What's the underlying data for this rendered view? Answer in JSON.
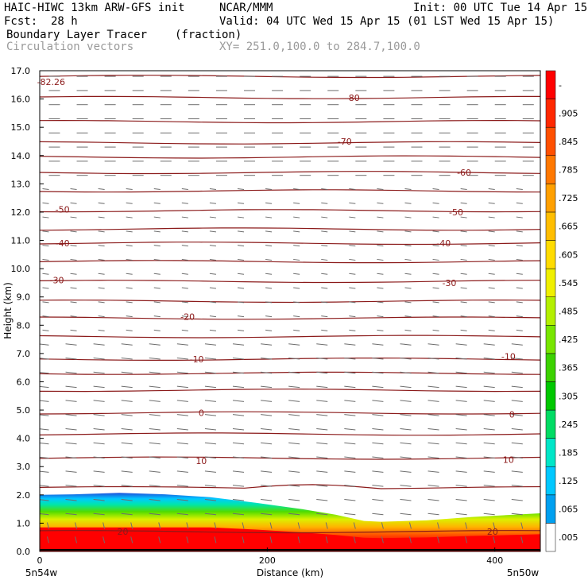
{
  "header": {
    "model": "HAIC-HIWC 13km ARW-GFS init",
    "org": "NCAR/MMM",
    "init": "Init: 00 UTC Tue 14 Apr 15",
    "fcst": "Fcst:  28 h",
    "valid": "Valid: 04 UTC Wed 15 Apr 15 (01 LST Wed 15 Apr 15)",
    "field": "Boundary Layer Tracer",
    "units": "(fraction)",
    "vectors": "Circulation vectors",
    "xy": "XY= 251.0,100.0 to 284.7,100.0"
  },
  "chart_data": {
    "type": "heatmap",
    "title": "Boundary Layer Tracer",
    "ylabel": "Height (km)",
    "xlabel": "Distance (km)",
    "x_end_labels": [
      "5n54w",
      "5n50w"
    ],
    "xlim": [
      0,
      440
    ],
    "ylim": [
      0,
      17
    ],
    "xticks": [
      0,
      200,
      400
    ],
    "xtick_labels": [
      "0",
      "200",
      "400"
    ],
    "yticks": [
      0,
      1,
      2,
      3,
      4,
      5,
      6,
      7,
      8,
      9,
      10,
      11,
      12,
      13,
      14,
      15,
      16,
      17
    ],
    "ytick_labels": [
      "0.0",
      "1.0",
      "2.0",
      "3.0",
      "4.0",
      "5.0",
      "6.0",
      "7.0",
      "8.0",
      "9.0",
      "10.0",
      "11.0",
      "12.0",
      "13.0",
      "14.0",
      "15.0",
      "16.0",
      "17.0"
    ],
    "colorbar": {
      "labels": [
        ".005",
        ".065",
        ".125",
        ".185",
        ".245",
        ".305",
        ".365",
        ".425",
        ".485",
        ".545",
        ".605",
        ".665",
        ".725",
        ".785",
        ".845",
        ".905",
        "-"
      ],
      "colors": [
        "#ffffff",
        "#00a0f0",
        "#00c8ff",
        "#00e6c8",
        "#00dc64",
        "#00c800",
        "#3cd200",
        "#78e600",
        "#b4f000",
        "#f0f000",
        "#ffdc00",
        "#ffbe00",
        "#ffa000",
        "#ff7800",
        "#ff5000",
        "#ff2800",
        "#ff0000"
      ]
    },
    "tracer_top_km": [
      [
        0,
        2.0
      ],
      [
        30,
        2.02
      ],
      [
        70,
        2.07
      ],
      [
        110,
        2.02
      ],
      [
        150,
        1.92
      ],
      [
        190,
        1.72
      ],
      [
        230,
        1.5
      ],
      [
        260,
        1.3
      ],
      [
        285,
        1.08
      ],
      [
        300,
        1.05
      ],
      [
        340,
        1.1
      ],
      [
        380,
        1.22
      ],
      [
        440,
        1.35
      ]
    ],
    "contour_labels": [
      {
        "text": "-82.26",
        "x": 10,
        "y": 16.6
      },
      {
        "text": "-80",
        "x": 275,
        "y": 16.05
      },
      {
        "text": "-70",
        "x": 268,
        "y": 14.5
      },
      {
        "text": "-60",
        "x": 373,
        "y": 13.4
      },
      {
        "text": "-50",
        "x": 20,
        "y": 12.1
      },
      {
        "text": "-50",
        "x": 366,
        "y": 12.0
      },
      {
        "text": "-40",
        "x": 20,
        "y": 10.9
      },
      {
        "text": "-40",
        "x": 355,
        "y": 10.9
      },
      {
        "text": "-30",
        "x": 15,
        "y": 9.6
      },
      {
        "text": "-30",
        "x": 360,
        "y": 9.5
      },
      {
        "text": "-20",
        "x": 130,
        "y": 8.3
      },
      {
        "text": "-10",
        "x": 138,
        "y": 6.8
      },
      {
        "text": "-10",
        "x": 412,
        "y": 6.9
      },
      {
        "text": "0",
        "x": 142,
        "y": 4.9
      },
      {
        "text": "0",
        "x": 415,
        "y": 4.85
      },
      {
        "text": "10",
        "x": 142,
        "y": 3.2
      },
      {
        "text": "10",
        "x": 412,
        "y": 3.25
      },
      {
        "text": "20",
        "x": 73,
        "y": 0.7
      },
      {
        "text": "20",
        "x": 398,
        "y": 0.7
      }
    ],
    "isotherm_heights_km": [
      16.8,
      16.05,
      15.2,
      14.45,
      13.95,
      13.4,
      12.75,
      12.05,
      11.4,
      10.9,
      10.25,
      9.55,
      8.85,
      8.25,
      7.6,
      6.8,
      6.3,
      5.7,
      4.9,
      4.15,
      3.3,
      2.25,
      0.7
    ]
  }
}
